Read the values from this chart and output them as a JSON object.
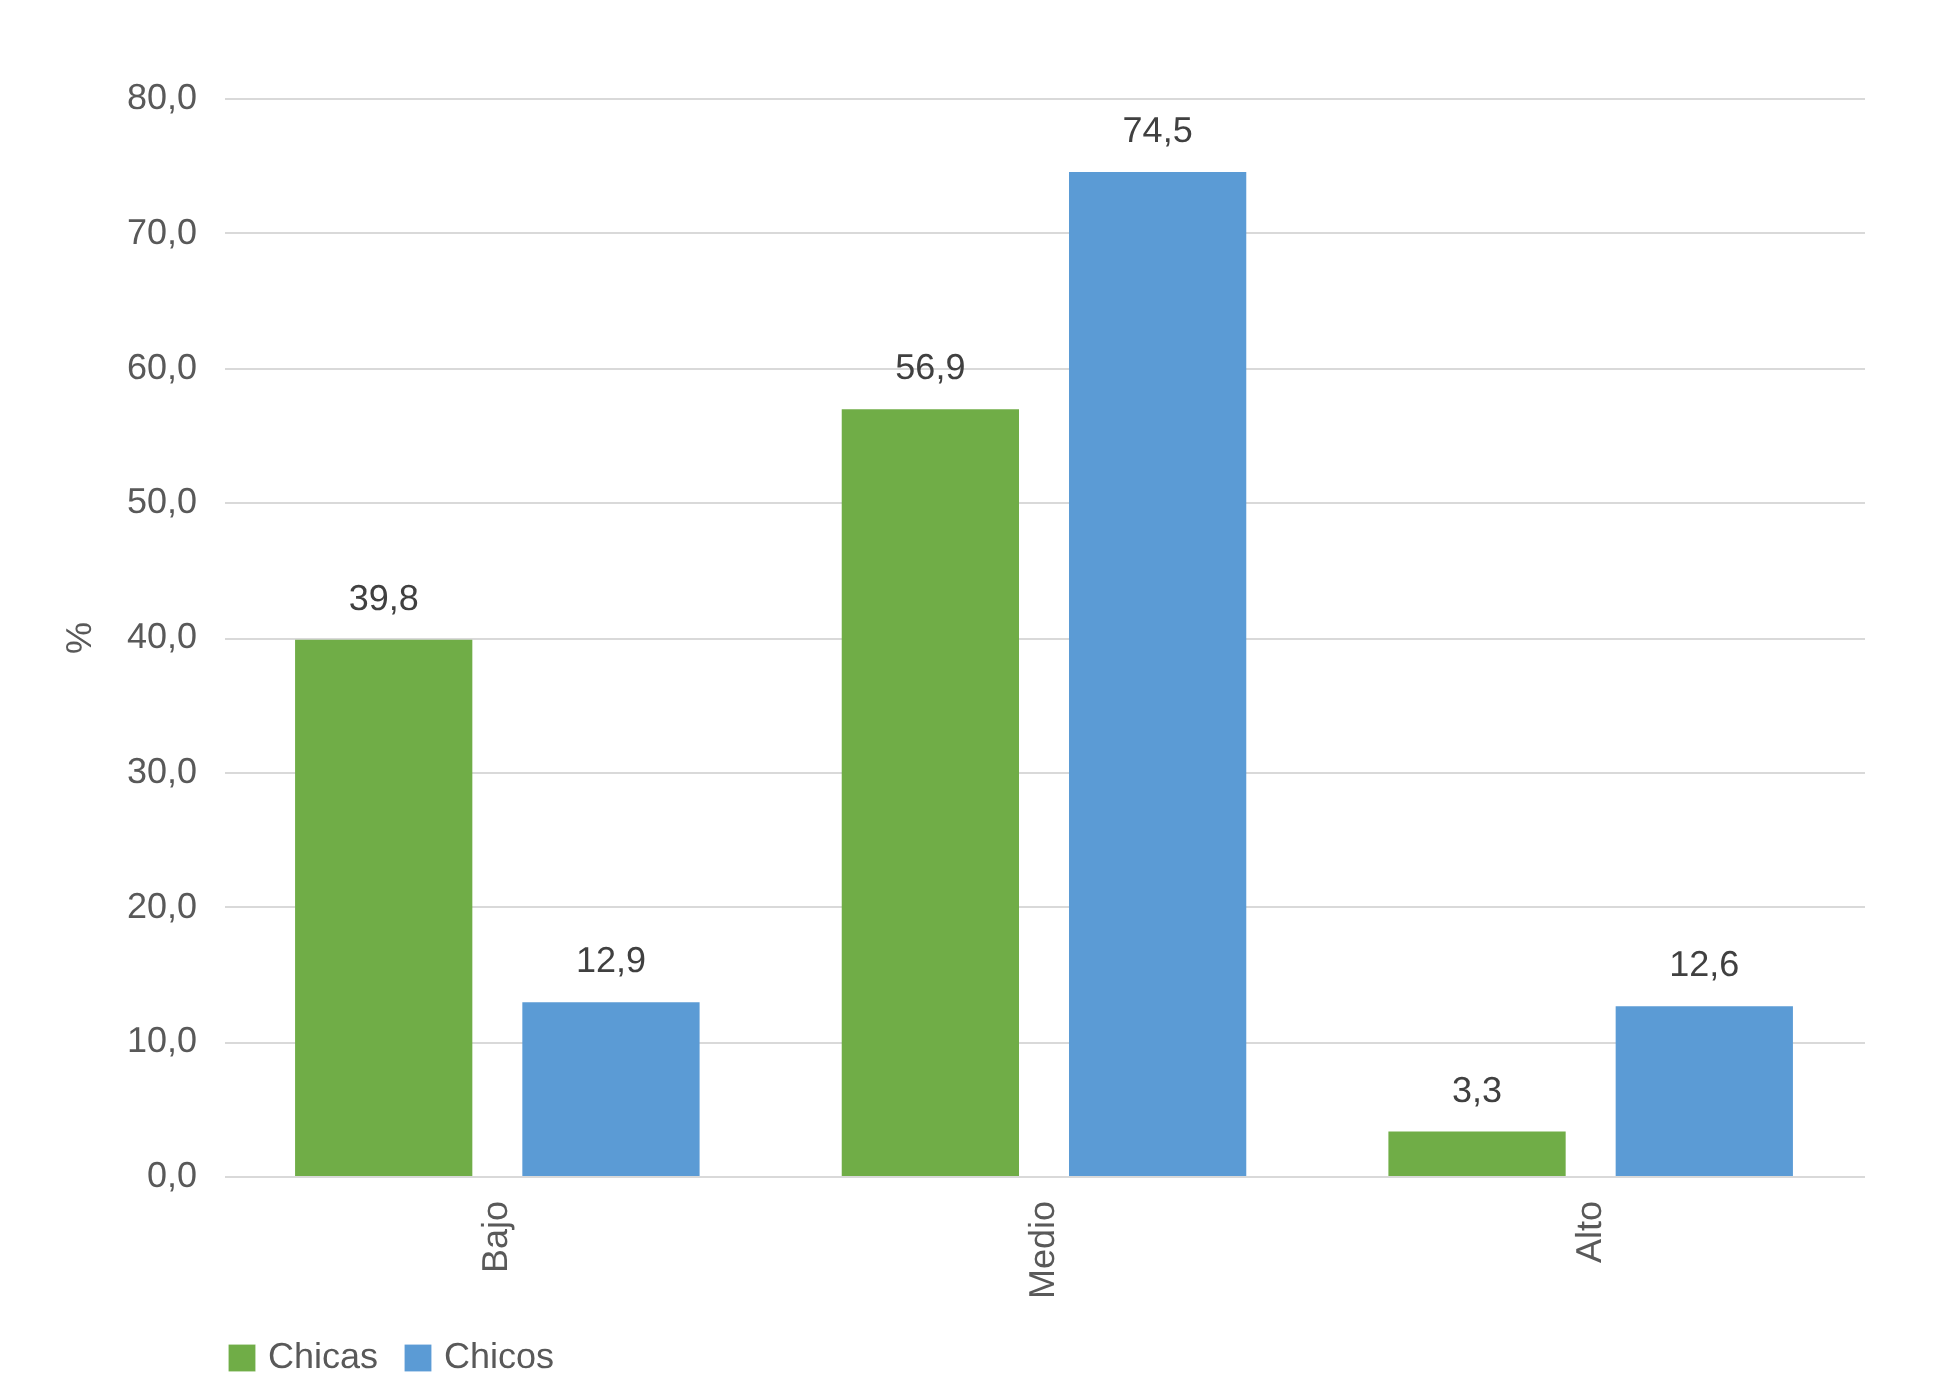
{
  "chart_data": {
    "type": "bar",
    "ylabel": "%",
    "categories": [
      "Bajo",
      "Medio",
      "Alto"
    ],
    "series": [
      {
        "name": "Chicas",
        "color": "#70ad47",
        "values": [
          39.8,
          56.9,
          3.3
        ],
        "value_labels": [
          "39,8",
          "56,9",
          "3,3"
        ]
      },
      {
        "name": "Chicos",
        "color": "#5b9bd5",
        "values": [
          12.9,
          74.5,
          12.6
        ],
        "value_labels": [
          "12,9",
          "74,5",
          "12,6"
        ]
      }
    ],
    "ylim": [
      0,
      80
    ],
    "yticks": [
      {
        "value": 0,
        "label": "0,0"
      },
      {
        "value": 10,
        "label": "10,0"
      },
      {
        "value": 20,
        "label": "20,0"
      },
      {
        "value": 30,
        "label": "30,0"
      },
      {
        "value": 40,
        "label": "40,0"
      },
      {
        "value": 50,
        "label": "50,0"
      },
      {
        "value": 60,
        "label": "60,0"
      },
      {
        "value": 70,
        "label": "70,0"
      },
      {
        "value": 80,
        "label": "80,0"
      }
    ],
    "grid": "y",
    "legend": "bottom"
  }
}
